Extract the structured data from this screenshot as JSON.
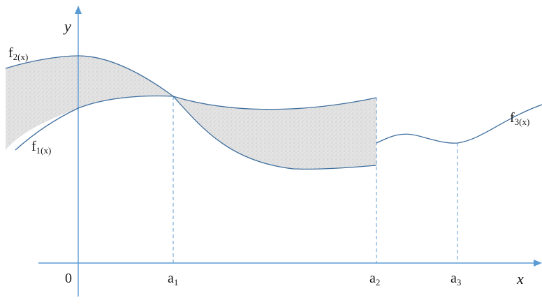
{
  "diagram": {
    "axes": {
      "x_label": "x",
      "y_label": "y",
      "origin_label": "0"
    },
    "curves": [
      {
        "id": "f1",
        "base": "f",
        "sub": "1(x)"
      },
      {
        "id": "f2",
        "base": "f",
        "sub": "2(x)"
      },
      {
        "id": "f3",
        "base": "f",
        "sub": "3(x)"
      }
    ],
    "ticks": [
      {
        "id": "a1",
        "base": "a",
        "sub": "1"
      },
      {
        "id": "a2",
        "base": "a",
        "sub": "2"
      },
      {
        "id": "a3",
        "base": "a",
        "sub": "3"
      }
    ],
    "colors": {
      "axis": "#5b9bd5",
      "curve": "#3f6f9f",
      "guide": "#5b9bd5",
      "shade": "#d9d9d9"
    }
  }
}
